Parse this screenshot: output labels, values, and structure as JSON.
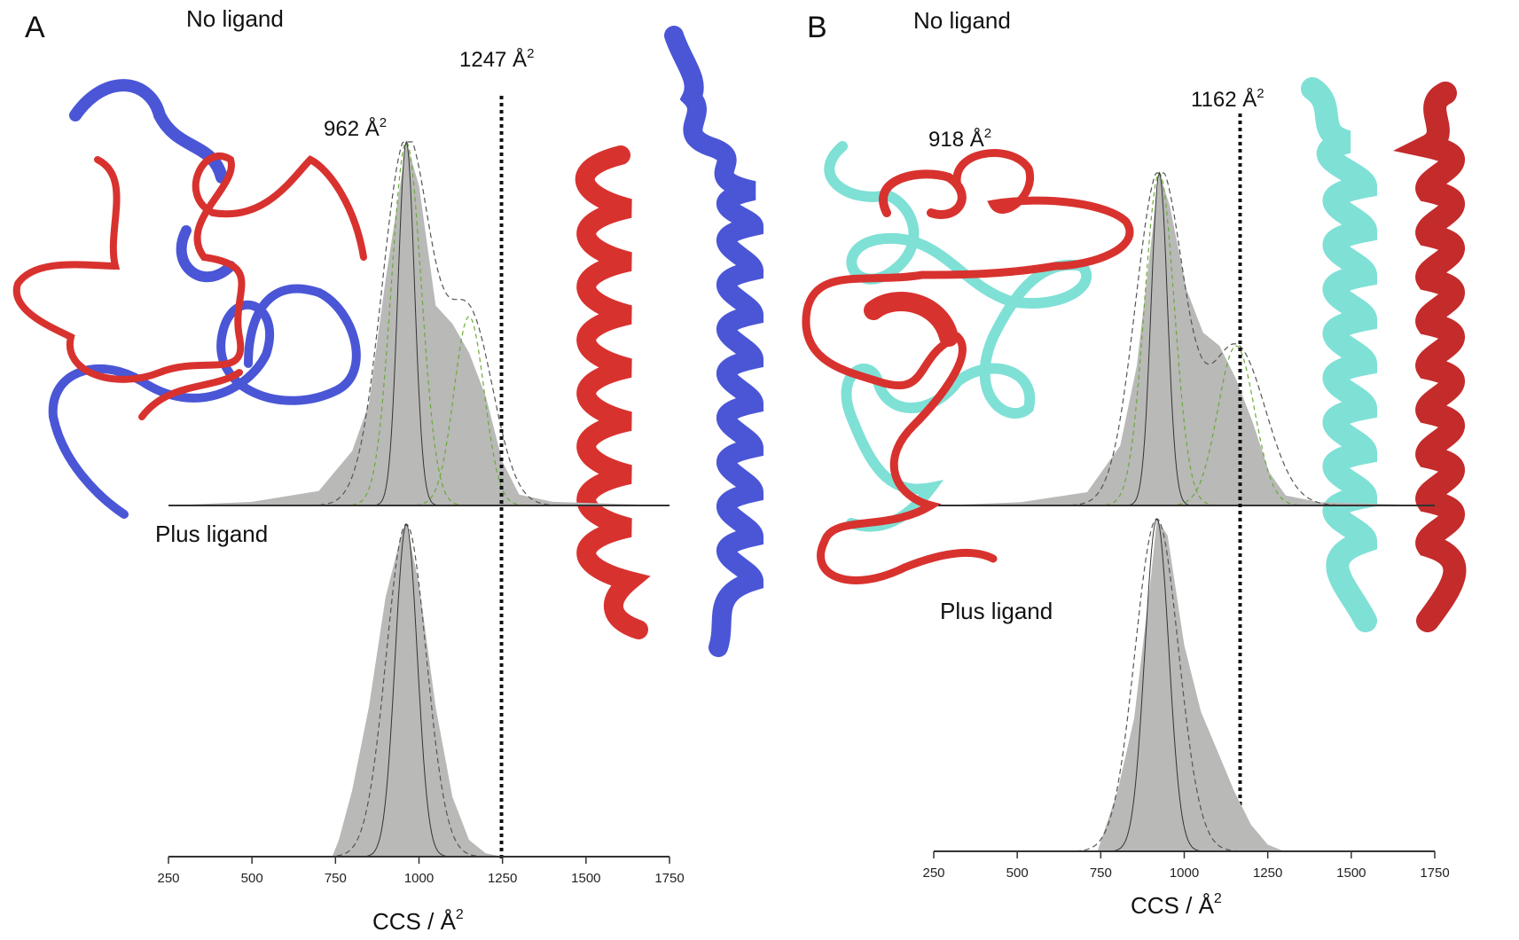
{
  "panels": {
    "A": {
      "letter": "A",
      "no_ligand": "No ligand",
      "plus_ligand": "Plus ligand",
      "peak1_label": "962 Å",
      "peak2_label": "1247 Å",
      "sup": "2"
    },
    "B": {
      "letter": "B",
      "no_ligand": "No ligand",
      "plus_ligand": "Plus ligand",
      "peak1_label": "918 Å",
      "peak2_label": "1162 Å",
      "sup": "2"
    }
  },
  "axis": {
    "title": "CCS / Å",
    "sup": "2",
    "ticks": [
      "250",
      "500",
      "750",
      "1000",
      "1250",
      "1500",
      "1750"
    ]
  },
  "colors": {
    "red_helix": "#d8322f",
    "blue_helix": "#4a56d6",
    "cyan_helix": "#7fe0d6",
    "envelope": "#b9b9b7",
    "green_fit": "#6aaa3a"
  },
  "chart_data": [
    {
      "type": "area",
      "panel": "A",
      "condition": "No ligand",
      "x": [
        250,
        500,
        700,
        800,
        850,
        900,
        950,
        962,
        1000,
        1050,
        1100,
        1150,
        1200,
        1250,
        1300,
        1400,
        1750
      ],
      "y": [
        0.0,
        0.01,
        0.04,
        0.15,
        0.28,
        0.62,
        0.92,
        1.0,
        0.88,
        0.55,
        0.5,
        0.42,
        0.3,
        0.12,
        0.03,
        0.01,
        0.0
      ],
      "fits": [
        {
          "center": 962,
          "width": 45,
          "amplitude": 1.0
        },
        {
          "center": 1150,
          "width": 45,
          "amplitude": 0.52
        }
      ],
      "reference_line": 1247,
      "xlim": [
        250,
        1750
      ],
      "xlabel": "CCS / Å2"
    },
    {
      "type": "area",
      "panel": "A",
      "condition": "Plus ligand",
      "x": [
        250,
        500,
        740,
        760,
        800,
        850,
        900,
        950,
        962,
        1000,
        1050,
        1100,
        1150,
        1200,
        1250,
        1750
      ],
      "y": [
        0.0,
        0.0,
        0.0,
        0.05,
        0.2,
        0.45,
        0.78,
        0.98,
        1.0,
        0.82,
        0.45,
        0.18,
        0.05,
        0.01,
        0.0,
        0.0
      ],
      "fits": [
        {
          "center": 962,
          "width": 60,
          "amplitude": 1.0
        }
      ],
      "reference_line": 1247,
      "xlim": [
        250,
        1750
      ],
      "xlabel": "CCS / Å2"
    },
    {
      "type": "area",
      "panel": "B",
      "condition": "No ligand",
      "x": [
        250,
        500,
        700,
        800,
        850,
        900,
        918,
        950,
        1000,
        1050,
        1100,
        1150,
        1200,
        1250,
        1300,
        1400,
        1750
      ],
      "y": [
        0.0,
        0.01,
        0.04,
        0.18,
        0.42,
        0.85,
        1.0,
        0.9,
        0.65,
        0.52,
        0.48,
        0.38,
        0.25,
        0.1,
        0.03,
        0.01,
        0.0
      ],
      "fits": [
        {
          "center": 918,
          "width": 45,
          "amplitude": 1.0
        },
        {
          "center": 1150,
          "width": 55,
          "amplitude": 0.48
        }
      ],
      "reference_line": 1162,
      "xlim": [
        250,
        1750
      ],
      "xlabel": "CCS / Å2"
    },
    {
      "type": "area",
      "panel": "B",
      "condition": "Plus ligand",
      "x": [
        250,
        500,
        740,
        760,
        800,
        850,
        900,
        918,
        950,
        1000,
        1050,
        1100,
        1150,
        1200,
        1250,
        1300,
        1750
      ],
      "y": [
        0.0,
        0.0,
        0.0,
        0.06,
        0.18,
        0.4,
        0.82,
        1.0,
        0.95,
        0.62,
        0.42,
        0.3,
        0.18,
        0.08,
        0.02,
        0.0,
        0.0
      ],
      "fits": [
        {
          "center": 918,
          "width": 65,
          "amplitude": 1.0
        }
      ],
      "reference_line": 1162,
      "xlim": [
        250,
        1750
      ],
      "xlabel": "CCS / Å2"
    }
  ]
}
